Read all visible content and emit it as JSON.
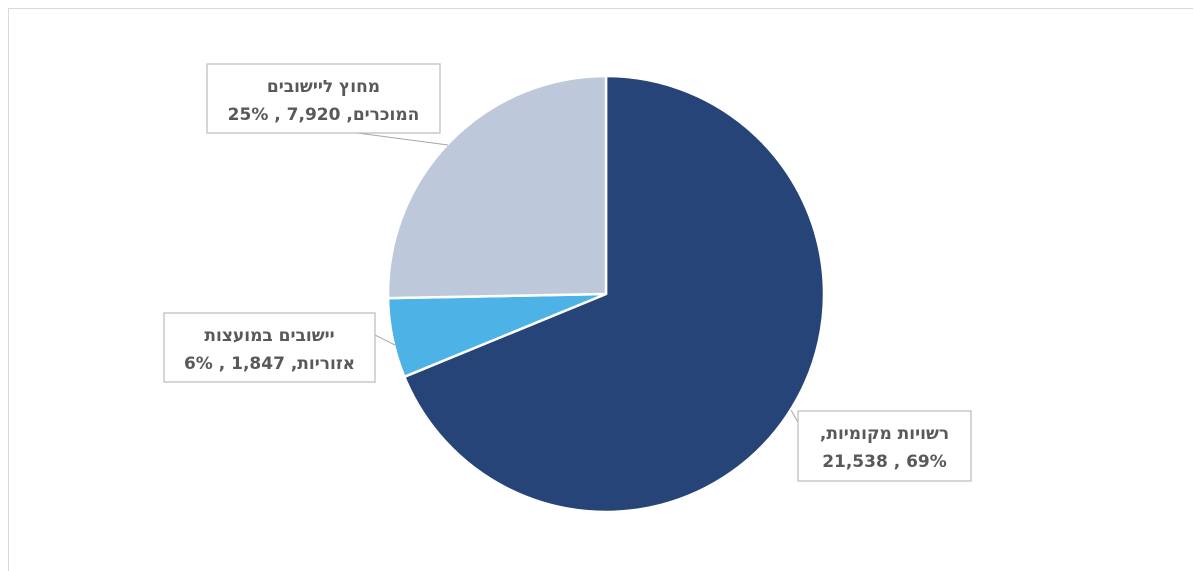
{
  "chart_data": {
    "type": "pie",
    "slices": [
      {
        "line1": "רשויות מקומיות,",
        "line2": "69% , 21,538",
        "value": 21538,
        "percent": 69,
        "color": "#264478"
      },
      {
        "line1": "יישובים במועצות",
        "line2": "אזוריות,  1,847 , 6%",
        "value": 1847,
        "percent": 6,
        "color": "#4db3e6"
      },
      {
        "line1": "מחוץ ליישובים",
        "line2": "המוכרים,  7,920 , 25%",
        "value": 7920,
        "percent": 25,
        "color": "#bdc9da"
      }
    ],
    "start_angle_deg": 0,
    "direction": "clockwise",
    "legend": "none"
  }
}
